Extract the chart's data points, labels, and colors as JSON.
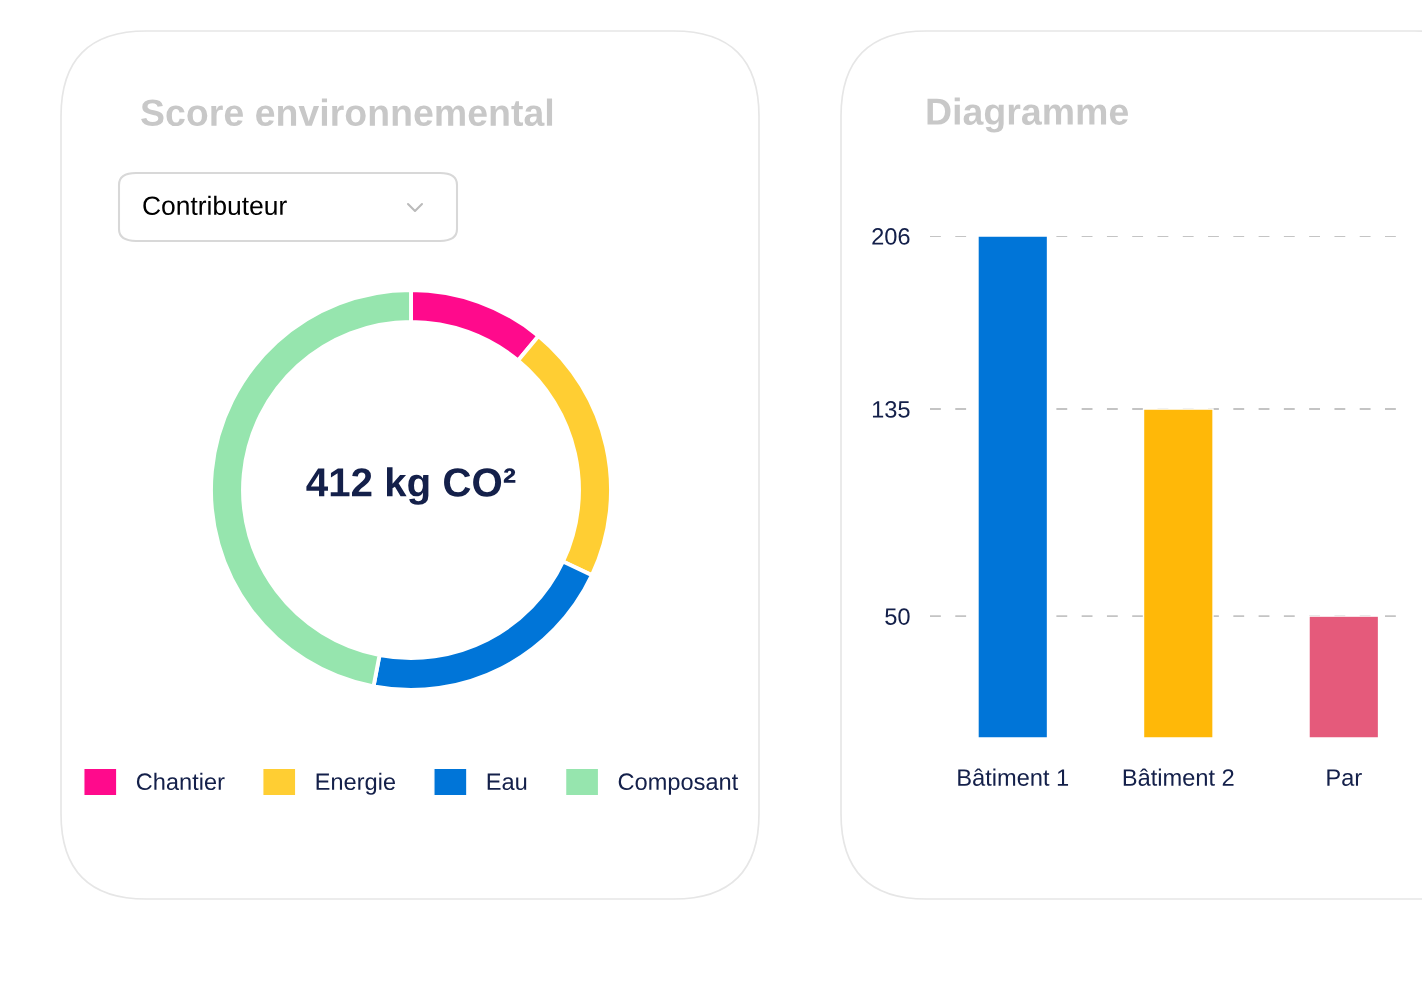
{
  "chart_data": [
    {
      "type": "donut",
      "title": "Score environnemental",
      "categories": [
        "Chantier",
        "Energie",
        "Eau",
        "Composant"
      ],
      "values": [
        11,
        21,
        21,
        47
      ],
      "colors": [
        "#ff0a8c",
        "#ffce33",
        "#0075d8",
        "#96e5ae"
      ],
      "legend": "bottom",
      "annotations": [
        "Contributeur",
        "412 kg CO²"
      ]
    },
    {
      "type": "bar",
      "title": "Diagramme",
      "categories": [
        "Bâtiment 1",
        "Bâtiment 2",
        "Par"
      ],
      "values": [
        206,
        135,
        50
      ],
      "colors": [
        "#0075d8",
        "#ffb808",
        "#e55a7b"
      ],
      "ylim": [
        0,
        206
      ],
      "yticks": [
        50,
        135,
        206
      ],
      "grid": "y"
    }
  ]
}
